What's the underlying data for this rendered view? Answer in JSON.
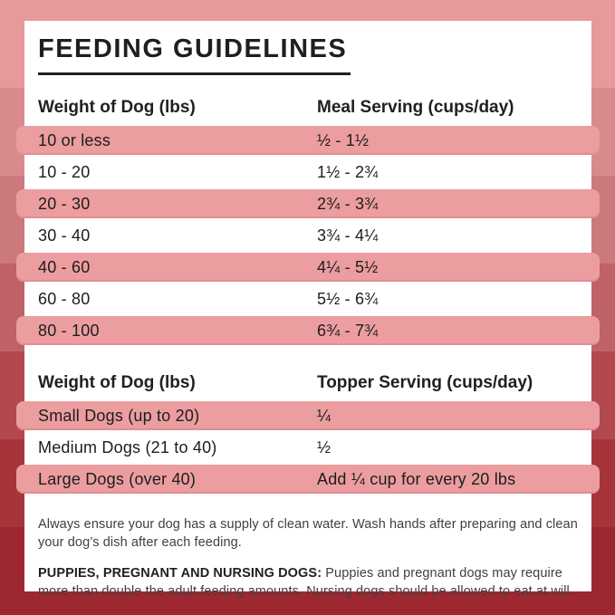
{
  "page": {
    "title": "FEEDING GUIDELINES"
  },
  "meal_table": {
    "headers": {
      "col1": "Weight of Dog (lbs)",
      "col2": "Meal Serving (cups/day)"
    },
    "rows": [
      {
        "weight": "10 or less",
        "serving": "½ - 1½"
      },
      {
        "weight": "10 - 20",
        "serving": "1½ - 2¾"
      },
      {
        "weight": "20 - 30",
        "serving": "2¾ - 3¾"
      },
      {
        "weight": "30 - 40",
        "serving": "3¾ - 4¼"
      },
      {
        "weight": "40 - 60",
        "serving": "4¼ - 5½"
      },
      {
        "weight": "60 - 80",
        "serving": "5½ - 6¾"
      },
      {
        "weight": "80 - 100",
        "serving": "6¾ - 7¾"
      }
    ]
  },
  "topper_table": {
    "headers": {
      "col1": "Weight of Dog (lbs)",
      "col2": "Topper Serving (cups/day)"
    },
    "rows": [
      {
        "weight": "Small Dogs (up to 20)",
        "serving": "¼"
      },
      {
        "weight": "Medium Dogs (21 to 40)",
        "serving": "½"
      },
      {
        "weight": "Large Dogs (over 40)",
        "serving": "Add ¼ cup for every 20 lbs"
      }
    ]
  },
  "notes": {
    "water_note": "Always ensure your dog has a supply of clean water. Wash hands after preparing and clean your dog’s dish after each feeding.",
    "breeding_label": "PUPPIES, PREGNANT AND NURSING DOGS:",
    "breeding_note": " Puppies and pregnant dogs may require more than double the adult feeding amounts. Nursing dogs should be allowed to eat at will."
  },
  "colors": {
    "row_highlight": "#ec9da0",
    "row_highlight_edge": "#e08e92",
    "card_background": "#ffffff",
    "text_dark": "#221e1f",
    "text_note": "#3f3f3f",
    "background_stripes": [
      "#e8999b",
      "#d88b8d",
      "#cb797d",
      "#bf6368",
      "#b3494f",
      "#a8343b",
      "#9e2831"
    ]
  }
}
